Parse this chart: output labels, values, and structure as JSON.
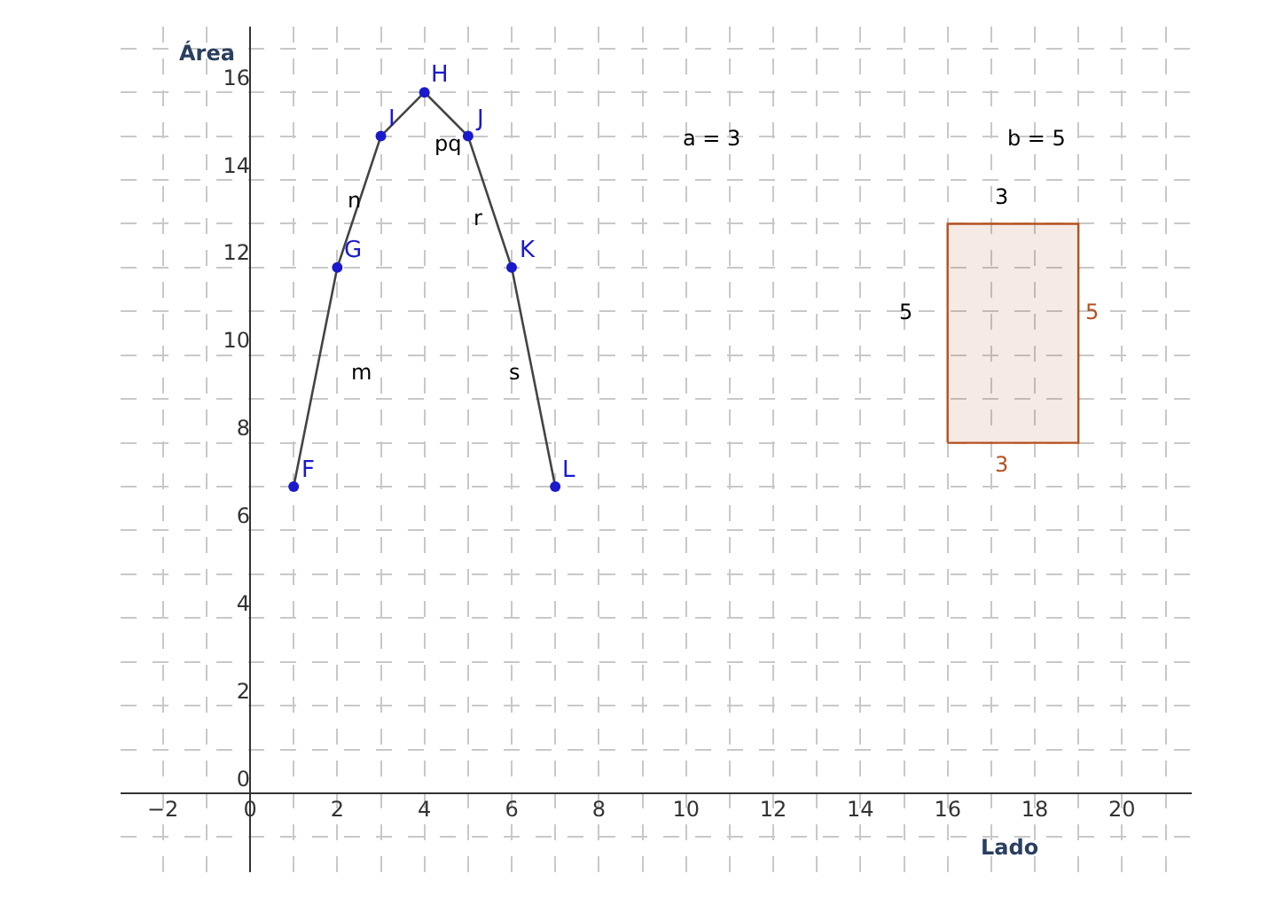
{
  "chart_data": {
    "type": "line",
    "xlabel": "Lado",
    "ylabel": "Área",
    "xlim": [
      -2.97,
      21.6
    ],
    "ylim": [
      -1.8,
      17.5
    ],
    "xticks": [
      -2,
      0,
      2,
      4,
      6,
      8,
      10,
      12,
      14,
      16,
      18,
      20
    ],
    "yticks": [
      0,
      2,
      4,
      6,
      8,
      10,
      12,
      14,
      16
    ],
    "grid": true,
    "legend": false,
    "marker": "circle",
    "line_style": "solid",
    "series": [
      {
        "color": "#1a1acc",
        "x": [
          1,
          2,
          3,
          4,
          5,
          6,
          7
        ],
        "values": [
          7,
          12,
          15,
          16,
          15,
          12,
          7
        ]
      },
      {
        "type": "area",
        "color": "#b5511f",
        "marker": "none",
        "x": [
          16,
          19,
          19,
          16,
          16
        ],
        "values": [
          8,
          8,
          13,
          13,
          8
        ]
      }
    ],
    "annotations": [
      {
        "text": "F",
        "x": 1,
        "y": 7
      },
      {
        "text": "G",
        "x": 2,
        "y": 12
      },
      {
        "text": "I",
        "x": 3,
        "y": 15
      },
      {
        "text": "H",
        "x": 4,
        "y": 16
      },
      {
        "text": "J",
        "x": 5,
        "y": 15
      },
      {
        "text": "K",
        "x": 6,
        "y": 12
      },
      {
        "text": "L",
        "x": 7,
        "y": 7
      },
      "n",
      "m",
      "pq",
      "r",
      "s",
      "a = 3",
      "b = 5",
      "3",
      "5",
      "5",
      "3"
    ]
  }
}
